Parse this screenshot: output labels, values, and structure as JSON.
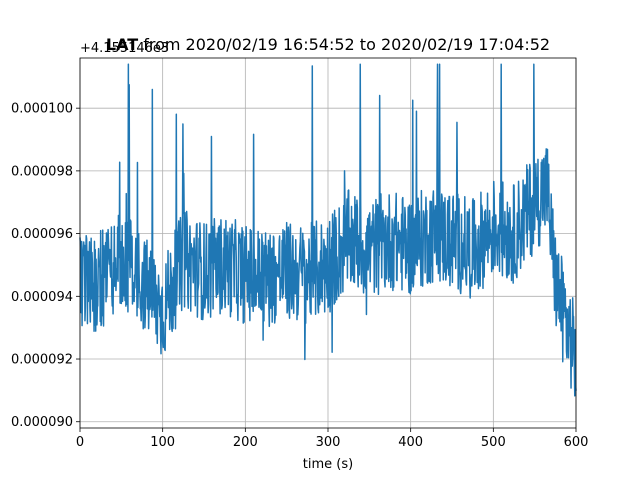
{
  "chart_data": {
    "type": "line",
    "title_prefix": "LAT",
    "title_rest": " from 2020/02/19 16:54:52 to 2020/02/19 17:04:52",
    "offset_label": "+4.155146e3",
    "xlabel": "time (s)",
    "ylabel": "",
    "xlim": [
      0,
      600
    ],
    "ylim": [
      8.98e-05,
      0.0001016
    ],
    "x_ticks": [
      0,
      100,
      200,
      300,
      400,
      500,
      600
    ],
    "x_tick_labels": [
      "0",
      "100",
      "200",
      "300",
      "400",
      "500",
      "600"
    ],
    "y_ticks": [
      9e-05,
      9.2e-05,
      9.4e-05,
      9.6e-05,
      9.8e-05,
      0.0001
    ],
    "y_tick_labels": [
      "0.000090",
      "0.000092",
      "0.000094",
      "0.000096",
      "0.000098",
      "0.000100"
    ],
    "grid": true,
    "line_color": "#1f77b4",
    "series": [
      {
        "x": [
          0,
          25,
          50,
          75,
          100,
          125,
          150,
          175,
          200,
          225,
          250,
          275,
          300,
          325,
          350,
          375,
          400,
          425,
          450,
          475,
          500,
          525,
          550,
          565,
          575,
          590,
          600
        ],
        "y": [
          9.43e-05,
          9.45e-05,
          9.52e-05,
          9.45e-05,
          9.35e-05,
          9.52e-05,
          9.48e-05,
          9.5e-05,
          9.47e-05,
          9.46e-05,
          9.48e-05,
          9.47e-05,
          9.5e-05,
          9.58e-05,
          9.55e-05,
          9.58e-05,
          9.56e-05,
          9.6e-05,
          9.58e-05,
          9.55e-05,
          9.62e-05,
          9.6e-05,
          9.7e-05,
          9.75e-05,
          9.45e-05,
          9.3e-05,
          9.2e-05
        ]
      }
    ]
  }
}
